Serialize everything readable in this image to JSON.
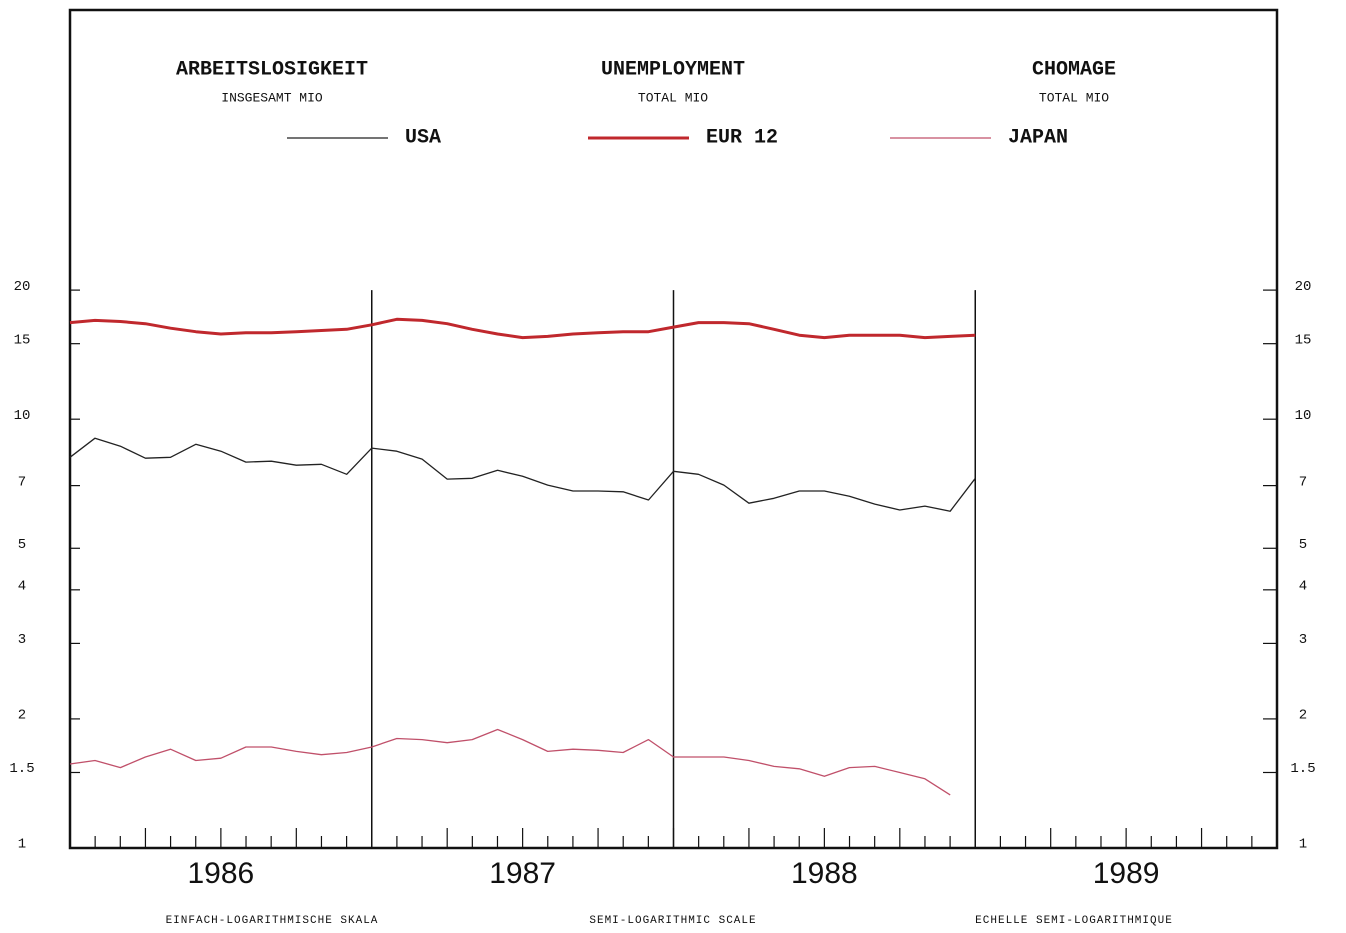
{
  "chart_data": {
    "type": "line",
    "titles": [
      {
        "title": "ARBEITSLOSIGKEIT",
        "subtitle": "INSGESAMT  MIO"
      },
      {
        "title": "UNEMPLOYMENT",
        "subtitle": "TOTAL  MIO"
      },
      {
        "title": "CHOMAGE",
        "subtitle": "TOTAL  MIO"
      }
    ],
    "scale_notes": [
      "EINFACH-LOGARITHMISCHE SKALA",
      "SEMI-LOGARITHMIC SCALE",
      "ECHELLE SEMI-LOGARITHMIQUE"
    ],
    "log_scale": true,
    "x": [
      1986,
      1986.083,
      1986.167,
      1986.25,
      1986.333,
      1986.417,
      1986.5,
      1986.583,
      1986.667,
      1986.75,
      1986.833,
      1986.917,
      1987,
      1987.083,
      1987.167,
      1987.25,
      1987.333,
      1987.417,
      1987.5,
      1987.583,
      1987.667,
      1987.75,
      1987.833,
      1987.917,
      1988,
      1988.083,
      1988.167,
      1988.25,
      1988.333,
      1988.417,
      1988.5,
      1988.583,
      1988.667,
      1988.75,
      1988.833,
      1988.917,
      1989
    ],
    "xlim": [
      1986,
      1990
    ],
    "xticks": [
      {
        "value": 1986.5,
        "label": "1986"
      },
      {
        "value": 1987.5,
        "label": "1987"
      },
      {
        "value": 1988.5,
        "label": "1988"
      },
      {
        "value": 1989.5,
        "label": "1989"
      }
    ],
    "ylim": [
      1,
      90
    ],
    "yticks": [
      1,
      1.5,
      2,
      3,
      4,
      5,
      7,
      10,
      15,
      20
    ],
    "series": [
      {
        "name": "USA",
        "color": "#222222",
        "line_width": 1.3,
        "values": [
          8.15,
          9.03,
          8.65,
          8.11,
          8.15,
          8.74,
          8.42,
          7.94,
          7.98,
          7.81,
          7.85,
          7.44,
          8.56,
          8.42,
          8.07,
          7.25,
          7.28,
          7.6,
          7.36,
          7.02,
          6.8,
          6.8,
          6.77,
          6.48,
          7.56,
          7.44,
          7.02,
          6.37,
          6.54,
          6.8,
          6.8,
          6.61,
          6.34,
          6.14,
          6.27,
          6.1,
          7.28
        ]
      },
      {
        "name": "EUR 12",
        "color": "#c0282d",
        "line_width": 3,
        "values": [
          16.8,
          17.0,
          16.9,
          16.7,
          16.3,
          16.0,
          15.8,
          15.9,
          15.9,
          16.0,
          16.1,
          16.2,
          16.6,
          17.1,
          17.0,
          16.7,
          16.2,
          15.8,
          15.5,
          15.6,
          15.8,
          15.9,
          16.0,
          16.0,
          16.4,
          16.8,
          16.8,
          16.7,
          16.2,
          15.7,
          15.5,
          15.7,
          15.7,
          15.7,
          15.5,
          15.6,
          15.7
        ]
      },
      {
        "name": "JAPAN",
        "color": "#c0506a",
        "line_width": 1.3,
        "values": [
          1.57,
          1.6,
          1.54,
          1.63,
          1.7,
          1.6,
          1.62,
          1.72,
          1.72,
          1.68,
          1.65,
          1.67,
          1.72,
          1.8,
          1.79,
          1.76,
          1.79,
          1.89,
          1.79,
          1.68,
          1.7,
          1.69,
          1.67,
          1.79,
          1.63,
          1.63,
          1.63,
          1.6,
          1.55,
          1.53,
          1.47,
          1.54,
          1.55,
          1.5,
          1.45,
          1.33,
          null
        ]
      }
    ]
  }
}
